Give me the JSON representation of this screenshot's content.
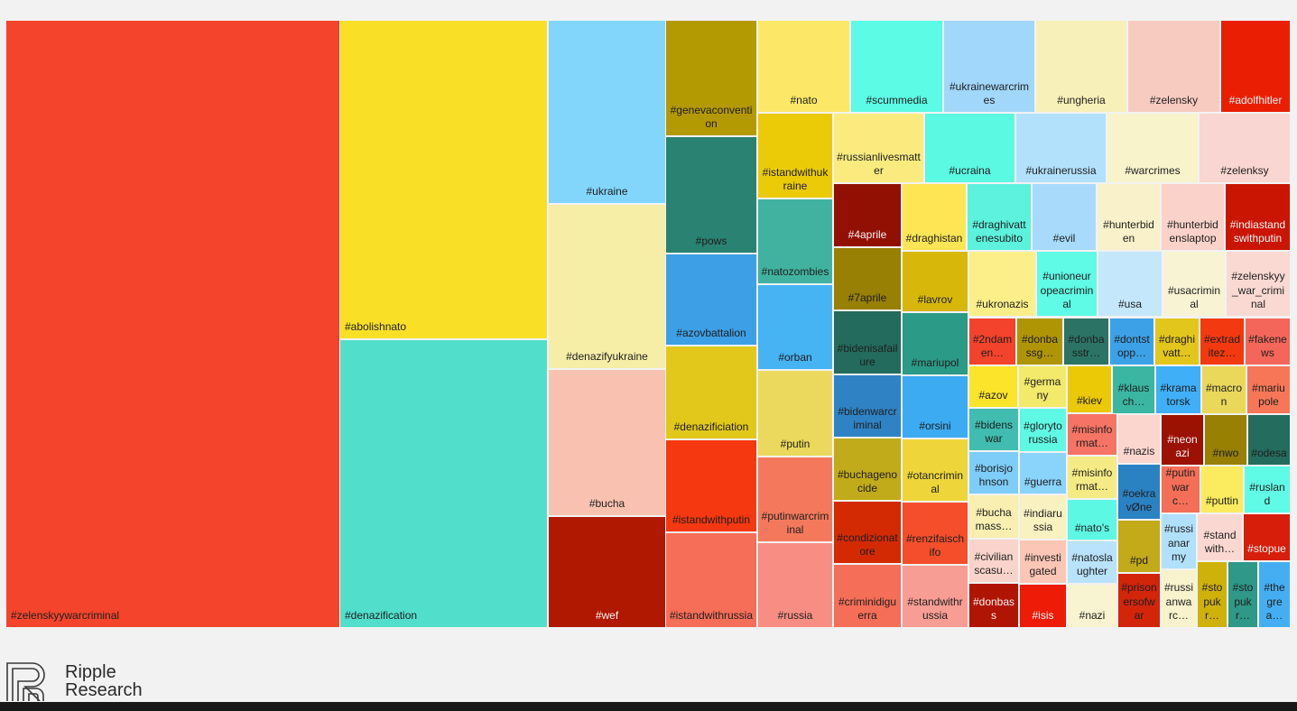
{
  "chart_data": {
    "type": "treemap",
    "tiles": [
      {
        "label": "#zelenskyywarcriminal",
        "color": "#f4442c",
        "layout": [
          7,
          23,
          369,
          672
        ]
      },
      {
        "label": "#abolishnato",
        "color": "#f9e027",
        "layout": [
          377,
          23,
          229,
          352
        ]
      },
      {
        "label": "#denazification",
        "color": "#51dfcb",
        "layout": [
          377,
          377,
          229,
          318
        ]
      },
      {
        "label": "#ukraine",
        "color": "#82d6fc",
        "layout": [
          608,
          23,
          129,
          202
        ]
      },
      {
        "label": "#denazifyukraine",
        "color": "#f6eda7",
        "layout": [
          608,
          227,
          129,
          181
        ]
      },
      {
        "label": "#bucha",
        "color": "#f9c2b0",
        "layout": [
          608,
          410,
          129,
          161
        ]
      },
      {
        "label": "#wef",
        "color": "#b11801",
        "layout": [
          608,
          573,
          129,
          122
        ],
        "dark": true
      },
      {
        "label": "#genevaconvention",
        "color": "#b49a02",
        "layout": [
          738,
          23,
          100,
          127
        ]
      },
      {
        "label": "#pows",
        "color": "#2a8272",
        "layout": [
          738,
          152,
          100,
          128
        ]
      },
      {
        "label": "#azovbattalion",
        "color": "#3d9fe6",
        "layout": [
          738,
          282,
          100,
          100
        ]
      },
      {
        "label": "#denazificiation",
        "color": "#e1c81b",
        "layout": [
          738,
          384,
          100,
          102
        ]
      },
      {
        "label": "#istandwithputin",
        "color": "#f5380f",
        "layout": [
          738,
          488,
          100,
          101
        ]
      },
      {
        "label": "#istandwithrussia",
        "color": "#f66d58",
        "layout": [
          738,
          591,
          100,
          104
        ]
      },
      {
        "label": "#nato",
        "color": "#fce866",
        "layout": [
          840,
          23,
          101,
          101
        ]
      },
      {
        "label": "#scummedia",
        "color": "#5cfbe5",
        "layout": [
          943,
          23,
          101,
          101
        ]
      },
      {
        "label": "#ukrainewarcrimes",
        "color": "#a1d7fb",
        "layout": [
          1046,
          23,
          100,
          101
        ]
      },
      {
        "label": "#ungheria",
        "color": "#f8f0b9",
        "layout": [
          1148,
          23,
          100,
          101
        ]
      },
      {
        "label": "#zelensky",
        "color": "#f8cbc1",
        "layout": [
          1250,
          23,
          101,
          101
        ]
      },
      {
        "label": "#adolfhitler",
        "color": "#ea1e03",
        "layout": [
          1353,
          23,
          76,
          101
        ],
        "dark": true
      },
      {
        "label": "#istandwithukraine",
        "color": "#ebca08",
        "layout": [
          840,
          126,
          82,
          93
        ]
      },
      {
        "label": "#natozombies",
        "color": "#41b2a0",
        "layout": [
          840,
          221,
          82,
          93
        ]
      },
      {
        "label": "#orban",
        "color": "#46b4f3",
        "layout": [
          840,
          316,
          82,
          93
        ]
      },
      {
        "label": "#putin",
        "color": "#ead95c",
        "layout": [
          840,
          411,
          82,
          94
        ]
      },
      {
        "label": "#putinwarcriminal",
        "color": "#f4795c",
        "layout": [
          840,
          507,
          82,
          93
        ]
      },
      {
        "label": "#russia",
        "color": "#f88e83",
        "layout": [
          840,
          602,
          82,
          93
        ]
      },
      {
        "label": "#russianlivesmatter",
        "color": "#fbeb7f",
        "layout": [
          924,
          126,
          99,
          76
        ]
      },
      {
        "label": "#ucraina",
        "color": "#5bf8e2",
        "layout": [
          1025,
          126,
          99,
          76
        ]
      },
      {
        "label": "#ukrainerussia",
        "color": "#b2e1fc",
        "layout": [
          1126,
          126,
          99,
          76
        ]
      },
      {
        "label": "#warcrimes",
        "color": "#f8f3cb",
        "layout": [
          1227,
          126,
          100,
          76
        ]
      },
      {
        "label": "#zelenksy",
        "color": "#f9d6d1",
        "layout": [
          1329,
          126,
          100,
          76
        ]
      },
      {
        "label": "#4aprile",
        "color": "#920f03",
        "layout": [
          924,
          204,
          74,
          69
        ],
        "dark": true
      },
      {
        "label": "#7aprile",
        "color": "#978003",
        "layout": [
          924,
          275,
          74,
          68
        ]
      },
      {
        "label": "#bidenisafailure",
        "color": "#236b5d",
        "layout": [
          924,
          345,
          74,
          69
        ]
      },
      {
        "label": "#bidenwarcriminal",
        "color": "#2f83c5",
        "layout": [
          924,
          416,
          74,
          68
        ]
      },
      {
        "label": "#buchagenocide",
        "color": "#c1ab1b",
        "layout": [
          924,
          486,
          74,
          68
        ]
      },
      {
        "label": "#condizionatore",
        "color": "#d42a03",
        "layout": [
          924,
          556,
          74,
          68
        ]
      },
      {
        "label": "#criminidiguerra",
        "color": "#f56e58",
        "layout": [
          924,
          626,
          74,
          69
        ]
      },
      {
        "label": "#draghistan",
        "color": "#fde554",
        "layout": [
          1000,
          204,
          70,
          73
        ]
      },
      {
        "label": "#lavrov",
        "color": "#d7b80a",
        "layout": [
          1000,
          279,
          72,
          66
        ]
      },
      {
        "label": "#mariupol",
        "color": "#2b9a86",
        "layout": [
          1000,
          347,
          72,
          68
        ]
      },
      {
        "label": "#orsini",
        "color": "#3cabf2",
        "layout": [
          1000,
          417,
          72,
          68
        ]
      },
      {
        "label": "#otancriminal",
        "color": "#eed63a",
        "layout": [
          1000,
          487,
          72,
          68
        ]
      },
      {
        "label": "#renzifaischifo",
        "color": "#f44e2b",
        "layout": [
          1000,
          557,
          72,
          68
        ]
      },
      {
        "label": "#standwithrussia",
        "color": "#f79d94",
        "layout": [
          1000,
          627,
          72,
          68
        ]
      },
      {
        "label": "#draghivattenesubito",
        "color": "#5cf2dd",
        "layout": [
          1072,
          204,
          70,
          73
        ]
      },
      {
        "label": "#evil",
        "color": "#a8dbfb",
        "layout": [
          1144,
          204,
          70,
          73
        ]
      },
      {
        "label": "#hunterbiden",
        "color": "#f8f1c9",
        "layout": [
          1216,
          204,
          69,
          73
        ]
      },
      {
        "label": "#hunterbidenslaptop",
        "color": "#fbd2ca",
        "layout": [
          1287,
          204,
          69,
          73
        ]
      },
      {
        "label": "#indiastandswithputin",
        "color": "#c91502",
        "layout": [
          1358,
          204,
          71,
          73
        ],
        "dark": true
      },
      {
        "label": "#ukronazis",
        "color": "#fcef8a",
        "layout": [
          1074,
          279,
          73,
          71
        ]
      },
      {
        "label": "#unioneuropeacriminal",
        "color": "#5ffbe6",
        "layout": [
          1149,
          279,
          66,
          71
        ]
      },
      {
        "label": "#usa",
        "color": "#c5e7fb",
        "layout": [
          1217,
          279,
          70,
          71
        ]
      },
      {
        "label": "#usacriminal",
        "color": "#f8f3d3",
        "layout": [
          1289,
          279,
          68,
          71
        ]
      },
      {
        "label": "#zelenskyy_war_criminal",
        "color": "#fad9d3",
        "layout": [
          1359,
          279,
          70,
          71
        ]
      },
      {
        "label": "#2ndamen…",
        "color": "#f4432c",
        "layout": [
          1074,
          353,
          51,
          51
        ]
      },
      {
        "label": "#donbassg…",
        "color": "#af9503",
        "layout": [
          1127,
          353,
          50,
          51
        ]
      },
      {
        "label": "#donbasstr…",
        "color": "#2b7465",
        "layout": [
          1179,
          353,
          49,
          51
        ]
      },
      {
        "label": "#dontstopp…",
        "color": "#3da1e7",
        "layout": [
          1230,
          353,
          48,
          51
        ]
      },
      {
        "label": "#draghivatt…",
        "color": "#e3c61b",
        "layout": [
          1280,
          353,
          48,
          51
        ]
      },
      {
        "label": "#extraditez…",
        "color": "#f3390f",
        "layout": [
          1330,
          353,
          48,
          51
        ]
      },
      {
        "label": "#fakenews",
        "color": "#f5665a",
        "layout": [
          1380,
          353,
          49,
          51
        ]
      },
      {
        "label": "#azov",
        "color": "#fbe429",
        "layout": [
          1074,
          406,
          53,
          45
        ]
      },
      {
        "label": "#germany",
        "color": "#f3e96a",
        "layout": [
          1129,
          406,
          52,
          45
        ]
      },
      {
        "label": "#kiev",
        "color": "#ebc906",
        "layout": [
          1183,
          406,
          48,
          51
        ]
      },
      {
        "label": "#klausch…",
        "color": "#3bb6a2",
        "layout": [
          1233,
          406,
          46,
          52
        ]
      },
      {
        "label": "#kramatorsk",
        "color": "#3fb0f7",
        "layout": [
          1281,
          406,
          49,
          52
        ]
      },
      {
        "label": "#macron",
        "color": "#ead85b",
        "layout": [
          1332,
          406,
          48,
          52
        ]
      },
      {
        "label": "#mariupole",
        "color": "#f67758",
        "layout": [
          1382,
          406,
          47,
          52
        ]
      },
      {
        "label": "#bidenswar",
        "color": "#41bcb0",
        "layout": [
          1074,
          453,
          54,
          46
        ]
      },
      {
        "label": "#borisjohnson",
        "color": "#7ecdf9",
        "layout": [
          1074,
          501,
          54,
          46
        ]
      },
      {
        "label": "#buchamass…",
        "color": "#f8efb1",
        "layout": [
          1074,
          549,
          54,
          47
        ]
      },
      {
        "label": "#civilianscasu…",
        "color": "#fad4ca",
        "layout": [
          1074,
          598,
          54,
          47
        ]
      },
      {
        "label": "#donbass",
        "color": "#b01402",
        "layout": [
          1074,
          647,
          54,
          48
        ],
        "dark": true
      },
      {
        "label": "#glorytorussia",
        "color": "#5ff8e4",
        "layout": [
          1130,
          453,
          51,
          47
        ]
      },
      {
        "label": "#guerra",
        "color": "#8ad4fb",
        "layout": [
          1130,
          502,
          51,
          45
        ]
      },
      {
        "label": "#indiarussia",
        "color": "#f8f1c0",
        "layout": [
          1130,
          549,
          51,
          48
        ]
      },
      {
        "label": "#investigated",
        "color": "#fbc6b6",
        "layout": [
          1130,
          599,
          51,
          47
        ]
      },
      {
        "label": "#isis",
        "color": "#ee1c06",
        "layout": [
          1130,
          648,
          51,
          47
        ],
        "dark": true
      },
      {
        "label": "#misinformat…",
        "color": "#f67465",
        "layout": [
          1183,
          459,
          54,
          45
        ]
      },
      {
        "label": "#misinformat…",
        "color": "#f5eb85",
        "layout": [
          1183,
          506,
          54,
          46
        ]
      },
      {
        "label": "#nato's",
        "color": "#5df8e3",
        "layout": [
          1183,
          554,
          54,
          44
        ]
      },
      {
        "label": "#natoslaughter",
        "color": "#b9e2fc",
        "layout": [
          1183,
          600,
          54,
          46
        ]
      },
      {
        "label": "#nazi",
        "color": "#f8f3d0",
        "layout": [
          1183,
          648,
          54,
          47
        ]
      },
      {
        "label": "#nazis",
        "color": "#fad6cf",
        "layout": [
          1239,
          460,
          46,
          53
        ]
      },
      {
        "label": "#oekravØne",
        "color": "#2b82c3",
        "layout": [
          1239,
          515,
          46,
          60
        ]
      },
      {
        "label": "#pd",
        "color": "#c3aa19",
        "layout": [
          1239,
          577,
          46,
          57
        ]
      },
      {
        "label": "#prisonersofwar",
        "color": "#d2250a",
        "layout": [
          1239,
          636,
          46,
          59
        ]
      },
      {
        "label": "#neonazi",
        "color": "#9c1202",
        "layout": [
          1287,
          460,
          46,
          55
        ],
        "dark": true
      },
      {
        "label": "#nwo",
        "color": "#978002",
        "layout": [
          1335,
          460,
          46,
          55
        ]
      },
      {
        "label": "#odesa",
        "color": "#246c5d",
        "layout": [
          1383,
          460,
          46,
          55
        ]
      },
      {
        "label": "#putinwarc…",
        "color": "#f56e58",
        "layout": [
          1287,
          517,
          42,
          51
        ]
      },
      {
        "label": "#puttin",
        "color": "#fbeb5f",
        "layout": [
          1331,
          517,
          46,
          51
        ]
      },
      {
        "label": "#rusland",
        "color": "#5ffbe6",
        "layout": [
          1379,
          517,
          50,
          51
        ]
      },
      {
        "label": "#russianarmy",
        "color": "#b1e0fc",
        "layout": [
          1287,
          570,
          38,
          60
        ]
      },
      {
        "label": "#russianwarc…",
        "color": "#f8f2cd",
        "layout": [
          1287,
          632,
          38,
          63
        ]
      },
      {
        "label": "#standwith…",
        "color": "#fad8d1",
        "layout": [
          1327,
          570,
          49,
          51
        ]
      },
      {
        "label": "#stopue",
        "color": "#d71e0a",
        "layout": [
          1378,
          570,
          51,
          51
        ],
        "dark": true
      },
      {
        "label": "#stopukr…",
        "color": "#ceb20a",
        "layout": [
          1327,
          623,
          32,
          72
        ]
      },
      {
        "label": "#stopukr…",
        "color": "#2f9888",
        "layout": [
          1361,
          623,
          32,
          72
        ]
      },
      {
        "label": "#thegrea…",
        "color": "#45aef3",
        "layout": [
          1395,
          623,
          34,
          72
        ]
      }
    ]
  },
  "logo": {
    "line1": "Ripple",
    "line2": "Research",
    "icon": "ripple-logo-icon"
  }
}
